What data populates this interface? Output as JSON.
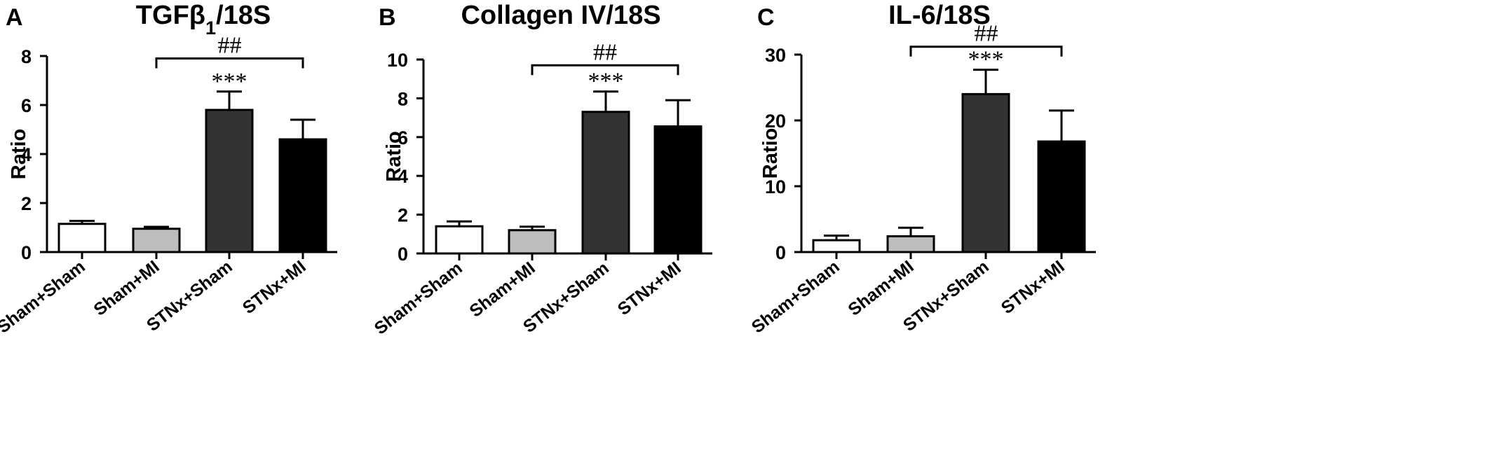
{
  "chart_data": [
    {
      "type": "bar",
      "panel": "A",
      "title": "TGFβ",
      "title_sub": "1",
      "title_suffix": "/18S",
      "ylabel": "Ratio",
      "ylim": [
        0,
        8
      ],
      "yticks": [
        0,
        2,
        4,
        6,
        8
      ],
      "categories": [
        "Sham+Sham",
        "Sham+MI",
        "STNx+Sham",
        "STNx+MI"
      ],
      "values": [
        1.15,
        0.95,
        5.8,
        4.6
      ],
      "errors": [
        0.12,
        0.08,
        0.75,
        0.8
      ],
      "colors": [
        "#ffffff",
        "#bdbdbd",
        "#333333",
        "#000000"
      ],
      "stars": [
        "",
        "",
        "***",
        ""
      ],
      "bracket": {
        "from": 1,
        "to": 3,
        "y": 7.9,
        "label": "##"
      }
    },
    {
      "type": "bar",
      "panel": "B",
      "title": "Collagen IV/18S",
      "title_sub": "",
      "title_suffix": "",
      "ylabel": "Ratio",
      "ylim": [
        0,
        10
      ],
      "yticks": [
        0,
        2,
        4,
        6,
        8,
        10
      ],
      "categories": [
        "Sham+Sham",
        "Sham+MI",
        "STNx+Sham",
        "STNx+MI"
      ],
      "values": [
        1.4,
        1.2,
        7.3,
        6.55
      ],
      "errors": [
        0.25,
        0.18,
        1.05,
        1.35
      ],
      "colors": [
        "#ffffff",
        "#bdbdbd",
        "#333333",
        "#000000"
      ],
      "stars": [
        "",
        "",
        "***",
        ""
      ],
      "bracket": {
        "from": 1,
        "to": 3,
        "y": 9.7,
        "label": "##"
      }
    },
    {
      "type": "bar",
      "panel": "C",
      "title": "IL-6/18S",
      "title_sub": "",
      "title_suffix": "",
      "ylabel": "Ratio",
      "ylim": [
        0,
        30
      ],
      "yticks": [
        0,
        10,
        20,
        30
      ],
      "categories": [
        "Sham+Sham",
        "Sham+MI",
        "STNx+Sham",
        "STNx+MI"
      ],
      "values": [
        1.8,
        2.4,
        24.0,
        16.8
      ],
      "errors": [
        0.7,
        1.3,
        3.7,
        4.7
      ],
      "colors": [
        "#ffffff",
        "#bdbdbd",
        "#333333",
        "#000000"
      ],
      "stars": [
        "",
        "",
        "***",
        ""
      ],
      "bracket": {
        "from": 1,
        "to": 3,
        "y": 31.2,
        "label": "##"
      }
    }
  ]
}
